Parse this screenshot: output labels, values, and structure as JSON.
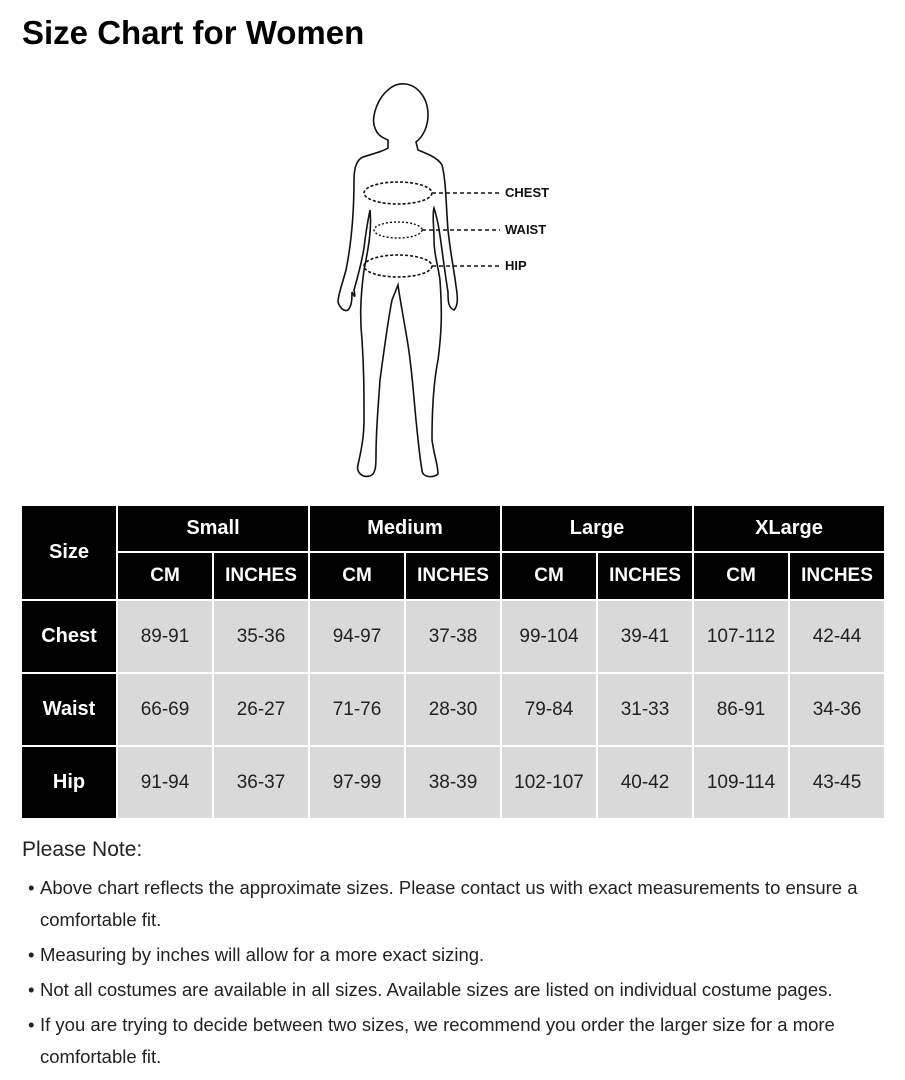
{
  "title": "Size Chart for Women",
  "figure": {
    "labels": [
      "CHEST",
      "WAIST",
      "HIP"
    ]
  },
  "table": {
    "corner": "Size",
    "sizes": [
      "Small",
      "Medium",
      "Large",
      "XLarge"
    ],
    "units": [
      "CM",
      "INCHES"
    ],
    "rows": [
      {
        "label": "Chest",
        "values": [
          "89-91",
          "35-36",
          "94-97",
          "37-38",
          "99-104",
          "39-41",
          "107-112",
          "42-44"
        ]
      },
      {
        "label": "Waist",
        "values": [
          "66-69",
          "26-27",
          "71-76",
          "28-30",
          "79-84",
          "31-33",
          "86-91",
          "34-36"
        ]
      },
      {
        "label": "Hip",
        "values": [
          "91-94",
          "36-37",
          "97-99",
          "38-39",
          "102-107",
          "40-42",
          "109-114",
          "43-45"
        ]
      }
    ]
  },
  "notes": {
    "title": "Please Note:",
    "bullet": "•",
    "items": [
      "Above chart reflects the approximate sizes. Please contact us with exact measurements to ensure a comfortable fit.",
      "Measuring by inches will allow for a more exact sizing.",
      "Not all costumes are available in all sizes. Available sizes are listed on individual costume pages.",
      "If you are trying to decide between two sizes, we recommend you order the larger size for a more comfortable fit."
    ]
  }
}
